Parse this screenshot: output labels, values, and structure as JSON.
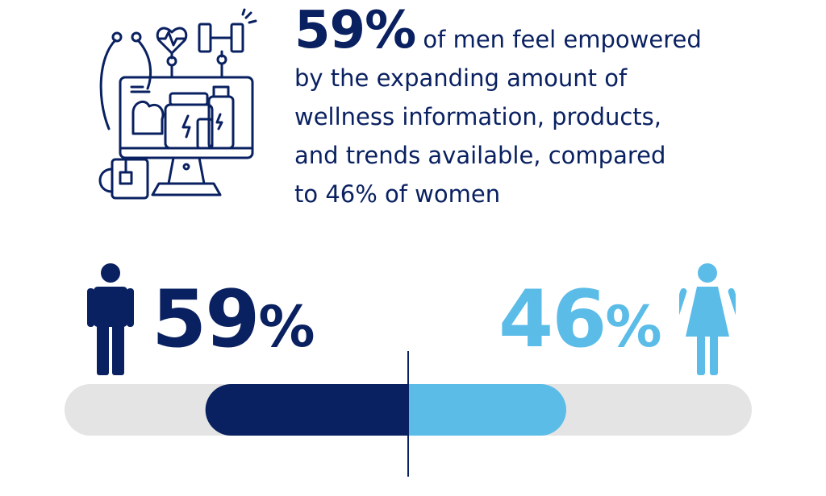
{
  "headline": {
    "big": "59%",
    "line1_rest": "of men feel empowered",
    "line2": "by the expanding amount of",
    "line3": "wellness information, products,",
    "line4": "and trends available, compared",
    "line5": "to 46% of women"
  },
  "illustration_icons": [
    "heart-rate-icon",
    "dumbbell-icon",
    "stethoscope-icon",
    "monitor-icon",
    "supplement-jar-icon",
    "bottle-icon",
    "flexed-arm-icon",
    "mug-icon"
  ],
  "colors": {
    "men": "#0a2161",
    "women": "#5bbce8",
    "track": "#e4e4e4",
    "divider": "#0a2161"
  },
  "chart_data": {
    "type": "bar",
    "orientation": "horizontal-diverging",
    "categories": [
      "Men",
      "Women"
    ],
    "values": [
      59,
      46
    ],
    "unit": "%",
    "labels": {
      "men": "59",
      "women": "46",
      "sign": "%"
    },
    "xlim": [
      0,
      100
    ]
  }
}
